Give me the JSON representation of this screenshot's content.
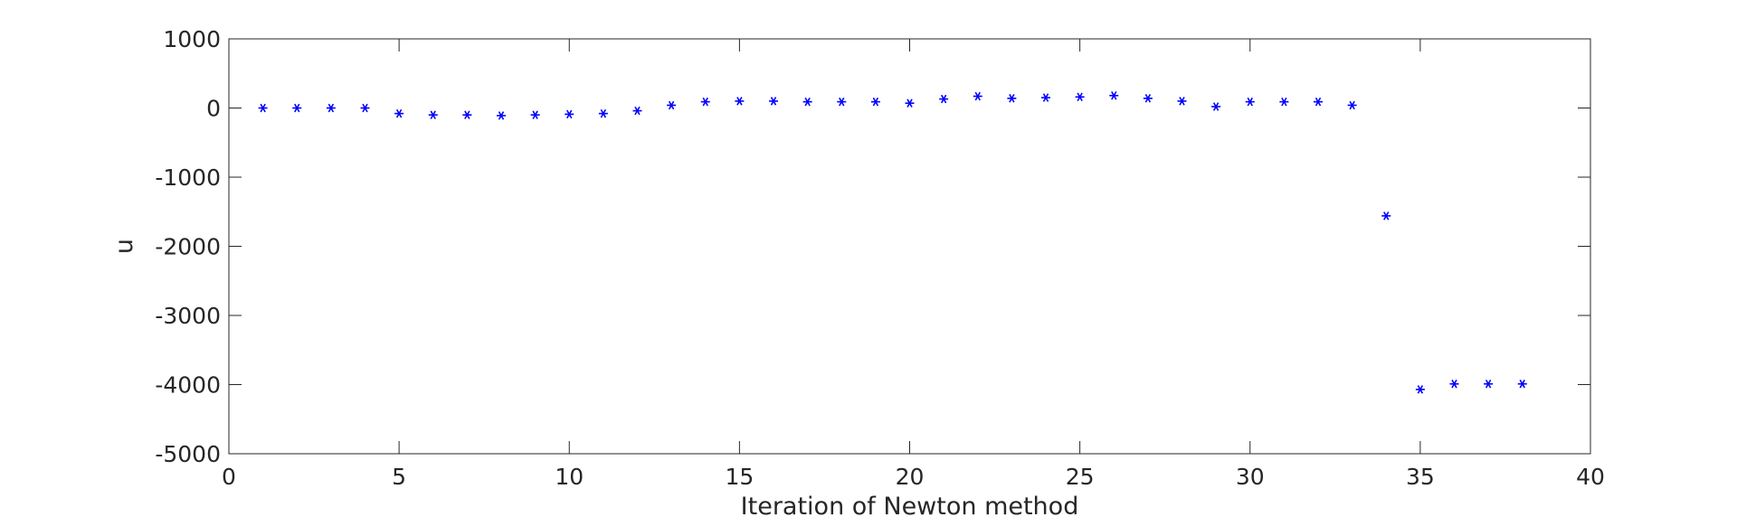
{
  "chart_data": {
    "type": "scatter",
    "title": "",
    "xlabel": "Iteration of Newton method",
    "ylabel": "u",
    "xlim": [
      0,
      40
    ],
    "ylim": [
      -5000,
      1000
    ],
    "xticks": [
      0,
      5,
      10,
      15,
      20,
      25,
      30,
      35,
      40
    ],
    "yticks": [
      1000,
      0,
      -1000,
      -2000,
      -3000,
      -4000,
      -5000
    ],
    "grid": false,
    "legend": "none",
    "marker": "asterisk",
    "marker_color": "#0000ff",
    "series": [
      {
        "x": [
          1,
          2,
          3,
          4,
          5,
          6,
          7,
          8,
          9,
          10,
          11,
          12,
          13,
          14,
          15,
          16,
          17,
          18,
          19,
          20,
          21,
          22,
          23,
          24,
          25,
          26,
          27,
          28,
          29,
          30,
          31,
          32,
          33,
          34,
          35,
          36,
          37,
          38
        ],
        "y": [
          0,
          0,
          0,
          0,
          -80,
          -100,
          -100,
          -110,
          -100,
          -90,
          -80,
          -40,
          40,
          90,
          100,
          100,
          90,
          90,
          90,
          70,
          130,
          170,
          140,
          150,
          160,
          180,
          140,
          100,
          20,
          90,
          90,
          90,
          40,
          -1560,
          -4070,
          -3990,
          -3990,
          -3990
        ]
      }
    ]
  }
}
